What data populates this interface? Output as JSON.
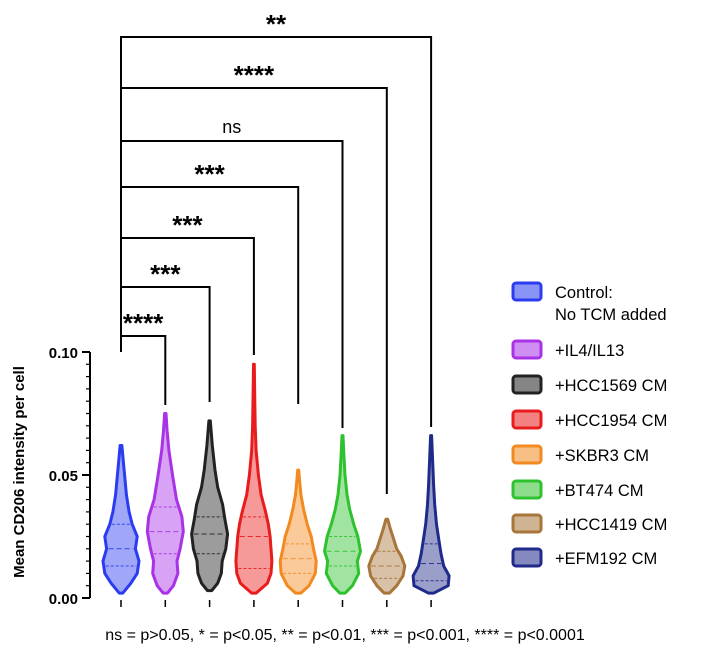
{
  "chart_data": {
    "type": "violin",
    "title": "",
    "xlabel": "",
    "ylabel": "Mean CD206 intensity per cell",
    "ylim": [
      0,
      0.1
    ],
    "y_ticks": [
      "0.00",
      "0.05",
      "0.10"
    ],
    "grid": false,
    "legend_position": "right",
    "series": [
      {
        "name": "Control:\nNo TCM added",
        "color": "#2b3cf0",
        "min": 0.002,
        "q1": 0.013,
        "median": 0.02,
        "q3": 0.03,
        "max": 0.062,
        "profile": [
          [
            0.002,
            0.1
          ],
          [
            0.006,
            0.55
          ],
          [
            0.01,
            0.9
          ],
          [
            0.015,
            1.0
          ],
          [
            0.02,
            0.8
          ],
          [
            0.025,
            0.9
          ],
          [
            0.03,
            0.62
          ],
          [
            0.035,
            0.45
          ],
          [
            0.042,
            0.3
          ],
          [
            0.05,
            0.2
          ],
          [
            0.056,
            0.12
          ],
          [
            0.062,
            0.05
          ]
        ]
      },
      {
        "name": "+IL4/IL13",
        "color": "#a832e6",
        "min": 0.002,
        "q1": 0.018,
        "median": 0.027,
        "q3": 0.037,
        "max": 0.075,
        "profile": [
          [
            0.002,
            0.12
          ],
          [
            0.005,
            0.45
          ],
          [
            0.01,
            0.7
          ],
          [
            0.015,
            0.65
          ],
          [
            0.02,
            0.82
          ],
          [
            0.027,
            1.0
          ],
          [
            0.033,
            0.92
          ],
          [
            0.04,
            0.62
          ],
          [
            0.05,
            0.4
          ],
          [
            0.06,
            0.2
          ],
          [
            0.068,
            0.1
          ],
          [
            0.075,
            0.04
          ]
        ]
      },
      {
        "name": "+HCC1569 CM",
        "color": "#222222",
        "min": 0.003,
        "q1": 0.018,
        "median": 0.026,
        "q3": 0.033,
        "max": 0.072,
        "profile": [
          [
            0.003,
            0.12
          ],
          [
            0.006,
            0.45
          ],
          [
            0.01,
            0.65
          ],
          [
            0.015,
            0.7
          ],
          [
            0.02,
            0.9
          ],
          [
            0.026,
            1.0
          ],
          [
            0.032,
            0.85
          ],
          [
            0.038,
            0.72
          ],
          [
            0.045,
            0.45
          ],
          [
            0.052,
            0.3
          ],
          [
            0.062,
            0.15
          ],
          [
            0.072,
            0.04
          ]
        ]
      },
      {
        "name": "+HCC1954 CM",
        "color": "#e81c1c",
        "min": 0.002,
        "q1": 0.012,
        "median": 0.025,
        "q3": 0.033,
        "max": 0.095,
        "profile": [
          [
            0.002,
            0.12
          ],
          [
            0.006,
            0.75
          ],
          [
            0.01,
            0.95
          ],
          [
            0.015,
            1.0
          ],
          [
            0.02,
            0.95
          ],
          [
            0.025,
            0.9
          ],
          [
            0.03,
            0.8
          ],
          [
            0.035,
            0.65
          ],
          [
            0.042,
            0.4
          ],
          [
            0.05,
            0.25
          ],
          [
            0.06,
            0.12
          ],
          [
            0.07,
            0.07
          ],
          [
            0.08,
            0.05
          ],
          [
            0.095,
            0.02
          ]
        ]
      },
      {
        "name": "+SKBR3 CM",
        "color": "#f38a1f",
        "min": 0.002,
        "q1": 0.01,
        "median": 0.016,
        "q3": 0.022,
        "max": 0.052,
        "profile": [
          [
            0.002,
            0.15
          ],
          [
            0.005,
            0.6
          ],
          [
            0.01,
            0.95
          ],
          [
            0.015,
            1.0
          ],
          [
            0.02,
            0.85
          ],
          [
            0.025,
            0.72
          ],
          [
            0.03,
            0.5
          ],
          [
            0.036,
            0.3
          ],
          [
            0.042,
            0.15
          ],
          [
            0.048,
            0.07
          ],
          [
            0.052,
            0.03
          ]
        ]
      },
      {
        "name": "+BT474 CM",
        "color": "#2fc22f",
        "min": 0.002,
        "q1": 0.013,
        "median": 0.019,
        "q3": 0.025,
        "max": 0.066,
        "profile": [
          [
            0.002,
            0.15
          ],
          [
            0.005,
            0.55
          ],
          [
            0.01,
            0.9
          ],
          [
            0.015,
            0.82
          ],
          [
            0.019,
            1.0
          ],
          [
            0.025,
            0.85
          ],
          [
            0.03,
            0.62
          ],
          [
            0.036,
            0.4
          ],
          [
            0.042,
            0.25
          ],
          [
            0.05,
            0.14
          ],
          [
            0.058,
            0.08
          ],
          [
            0.066,
            0.03
          ]
        ]
      },
      {
        "name": "+HCC1419 CM",
        "color": "#a8763a",
        "min": 0.002,
        "q1": 0.008,
        "median": 0.013,
        "q3": 0.019,
        "max": 0.032,
        "profile": [
          [
            0.002,
            0.15
          ],
          [
            0.005,
            0.55
          ],
          [
            0.009,
            0.9
          ],
          [
            0.013,
            1.0
          ],
          [
            0.017,
            0.8
          ],
          [
            0.02,
            0.55
          ],
          [
            0.024,
            0.38
          ],
          [
            0.028,
            0.2
          ],
          [
            0.032,
            0.05
          ]
        ]
      },
      {
        "name": "+EFM192 CM",
        "color": "#1f2a8a",
        "min": 0.002,
        "q1": 0.007,
        "median": 0.014,
        "q3": 0.022,
        "max": 0.066,
        "profile": [
          [
            0.002,
            0.15
          ],
          [
            0.005,
            0.95
          ],
          [
            0.009,
            1.0
          ],
          [
            0.013,
            0.7
          ],
          [
            0.018,
            0.55
          ],
          [
            0.024,
            0.42
          ],
          [
            0.03,
            0.3
          ],
          [
            0.038,
            0.2
          ],
          [
            0.046,
            0.14
          ],
          [
            0.055,
            0.09
          ],
          [
            0.066,
            0.03
          ]
        ]
      }
    ],
    "significance": [
      {
        "from": 0,
        "to": 1,
        "label": "****"
      },
      {
        "from": 0,
        "to": 2,
        "label": "***"
      },
      {
        "from": 0,
        "to": 3,
        "label": "***"
      },
      {
        "from": 0,
        "to": 4,
        "label": "***"
      },
      {
        "from": 0,
        "to": 5,
        "label": "ns"
      },
      {
        "from": 0,
        "to": 6,
        "label": "****"
      },
      {
        "from": 0,
        "to": 7,
        "label": "**"
      }
    ],
    "footnote": "ns = p>0.05, * = p<0.05, ** = p<0.01, *** = p<0.001, **** = p<0.0001"
  }
}
